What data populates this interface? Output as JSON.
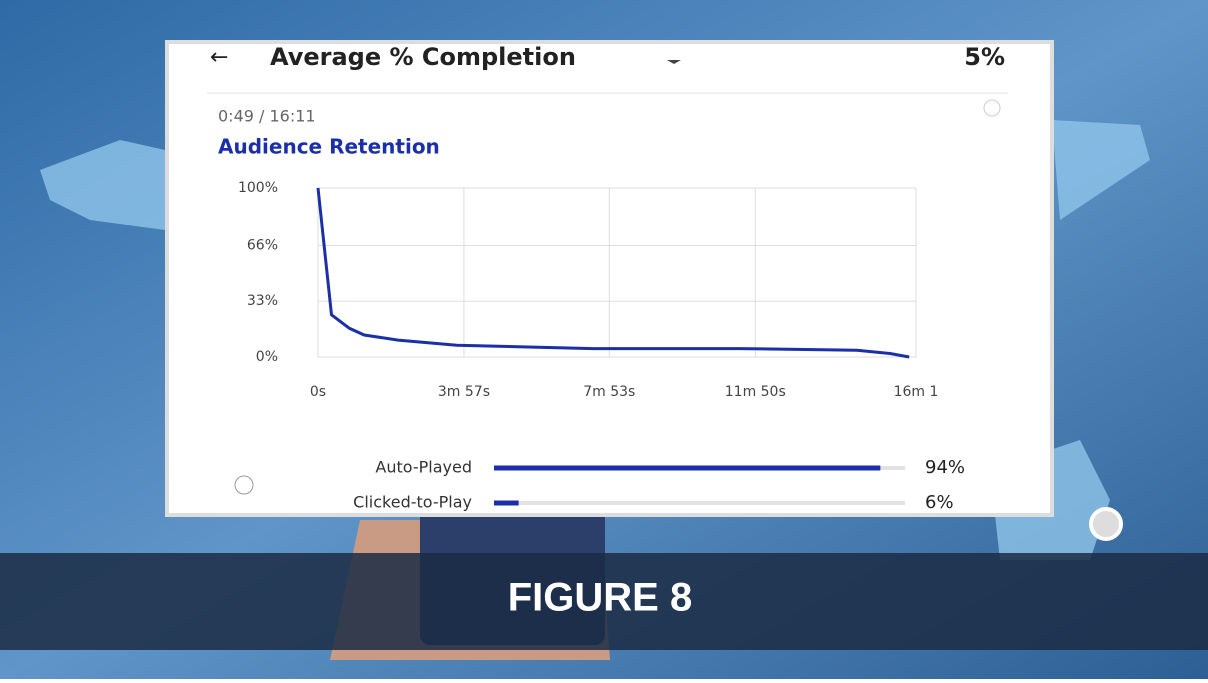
{
  "header": {
    "title": "Average % Completion",
    "value": "5%"
  },
  "video_time": "0:49 / 16:11",
  "figure_label": "FIGURE  8",
  "chart_data": [
    {
      "type": "line",
      "title": "Audience Retention",
      "x": [
        0,
        22,
        51,
        75,
        130,
        225,
        447,
        685,
        875,
        930,
        960
      ],
      "values": [
        100,
        25,
        17,
        13,
        10,
        7,
        5,
        5,
        4,
        2,
        0
      ],
      "color": "#1a2fa8",
      "xlim": [
        0,
        971
      ],
      "xticks": [
        {
          "value": 0,
          "label": "0s"
        },
        {
          "value": 237,
          "label": "3m 57s"
        },
        {
          "value": 473,
          "label": "7m 53s"
        },
        {
          "value": 710,
          "label": "11m 50s"
        },
        {
          "value": 971,
          "label": "16m 1"
        }
      ],
      "ylim": [
        0,
        100
      ],
      "yticks": [
        {
          "value": 0,
          "label": "0%"
        },
        {
          "value": 33,
          "label": "33%"
        },
        {
          "value": 66,
          "label": "66%"
        },
        {
          "value": 100,
          "label": "100%"
        }
      ],
      "grid": true
    },
    {
      "type": "hbar",
      "categories": [
        "Auto-Played",
        "Clicked-to-Play"
      ],
      "values": [
        94,
        6
      ],
      "value_labels": [
        "94%",
        "6%"
      ],
      "color": "#1a2fa8",
      "xlim": [
        0,
        100
      ]
    }
  ]
}
